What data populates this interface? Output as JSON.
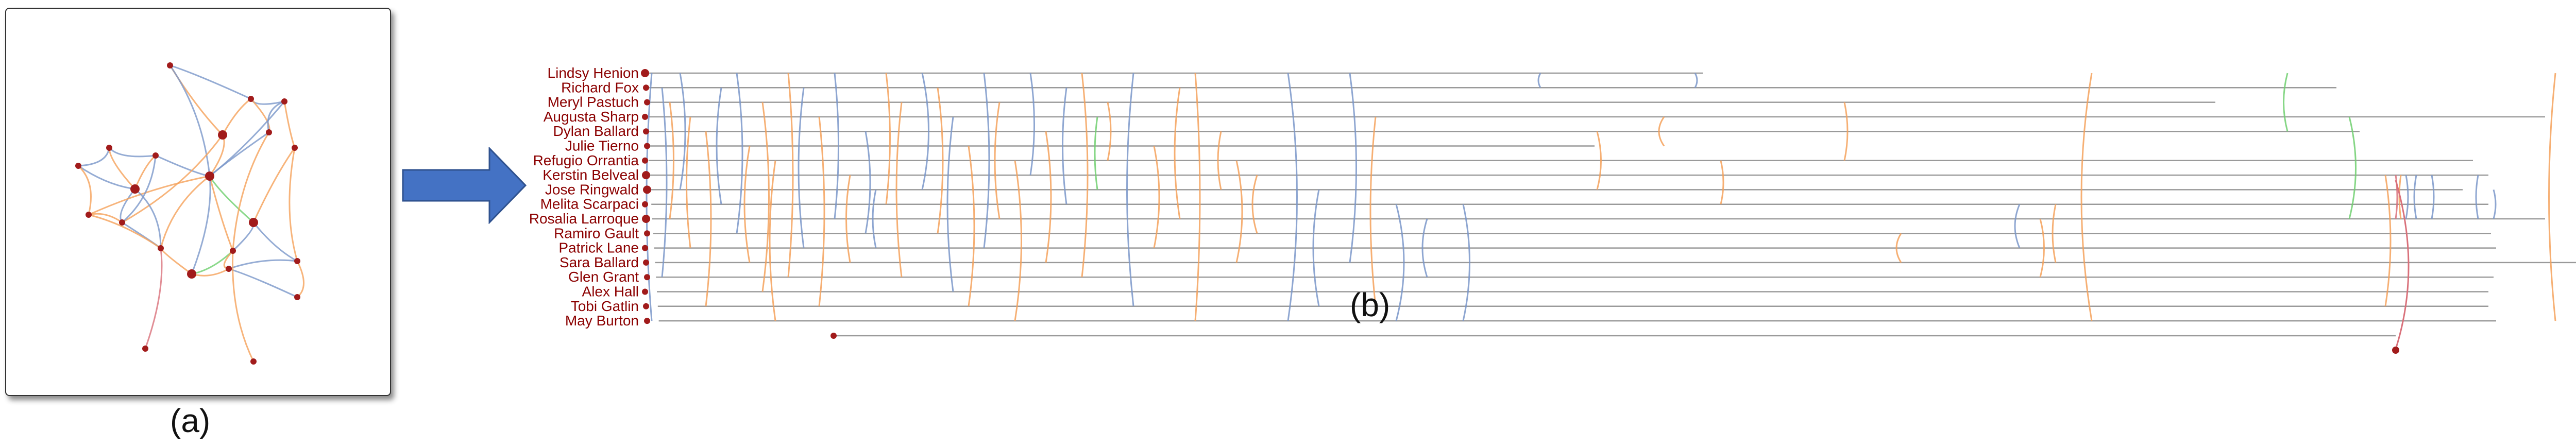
{
  "captions": {
    "a": "(a)",
    "b": "(b)"
  },
  "colors": {
    "node": "#a11b1b",
    "blue": "#7a97c9",
    "orange": "#f5a15a",
    "green": "#6fcf6f",
    "red": "#d9707a",
    "line": "#9a9a9a",
    "arrow_fill": "#4472c4",
    "arrow_stroke": "#2f528f",
    "label": "#8b0000"
  },
  "names": [
    "Lindsy Henion",
    "Richard Fox",
    "Meryl Pastuch",
    "Augusta Sharp",
    "Dylan Ballard",
    "Julie Tierno",
    "Refugio Orrantia",
    "Kerstin Belveal",
    "Jose Ringwald",
    "Melita Scarpaci",
    "Rosalia Larroque",
    "Ramiro Gault",
    "Patrick Lane",
    "Sara Ballard",
    "Glen Grant",
    "Alex Hall",
    "Tobi Gatlin",
    "May Burton"
  ]
}
